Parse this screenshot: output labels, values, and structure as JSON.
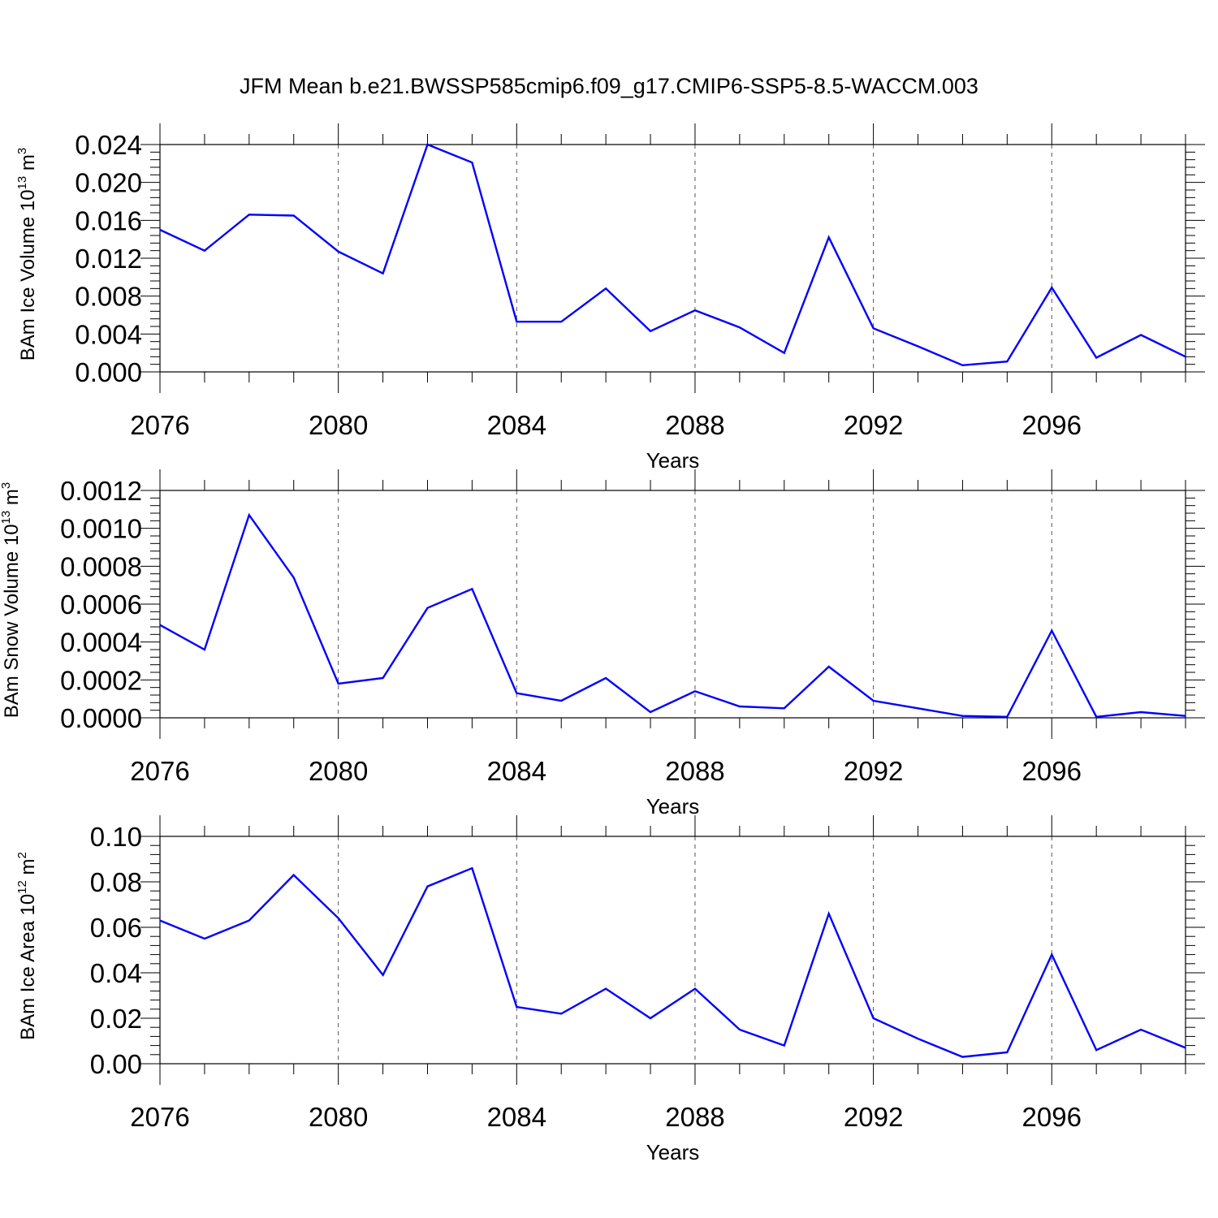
{
  "title": "JFM Mean b.e21.BWSSP585cmip6.f09_g17.CMIP6-SSP5-8.5-WACCM.003",
  "colors": {
    "series": "#0000ff",
    "axes": "#000000",
    "grid": "#555555"
  },
  "chart_data": [
    {
      "type": "line",
      "xlabel": "Years",
      "ylabel": {
        "prefix": "BAm Ice Volume 10",
        "exponent": "13",
        "unit": "m",
        "unit_exponent": "3"
      },
      "xlim": [
        2076,
        2099
      ],
      "ylim": [
        0,
        0.024
      ],
      "xticks": [
        2076,
        2080,
        2084,
        2088,
        2092,
        2096
      ],
      "yticks": [
        "0.000",
        "0.004",
        "0.008",
        "0.012",
        "0.016",
        "0.020",
        "0.024"
      ],
      "grid": "vertical dashed at major x ticks",
      "x": [
        2076,
        2077,
        2078,
        2079,
        2080,
        2081,
        2082,
        2083,
        2084,
        2085,
        2086,
        2087,
        2088,
        2089,
        2090,
        2091,
        2092,
        2093,
        2094,
        2095,
        2096,
        2097,
        2098,
        2099
      ],
      "values": [
        0.015,
        0.0128,
        0.0166,
        0.0165,
        0.0127,
        0.0104,
        0.024,
        0.0221,
        0.0053,
        0.0053,
        0.0088,
        0.0043,
        0.0065,
        0.0047,
        0.002,
        0.0142,
        0.0046,
        0.0027,
        0.0007,
        0.0011,
        0.0089,
        0.0015,
        0.0039,
        0.0016
      ]
    },
    {
      "type": "line",
      "xlabel": "Years",
      "ylabel": {
        "prefix": "BAm Snow Volume 10",
        "exponent": "13",
        "unit": "m",
        "unit_exponent": "3"
      },
      "xlim": [
        2076,
        2099
      ],
      "ylim": [
        0,
        0.0012
      ],
      "xticks": [
        2076,
        2080,
        2084,
        2088,
        2092,
        2096
      ],
      "yticks": [
        "0.0000",
        "0.0002",
        "0.0004",
        "0.0006",
        "0.0008",
        "0.0010",
        "0.0012"
      ],
      "grid": "vertical dashed at major x ticks",
      "x": [
        2076,
        2077,
        2078,
        2079,
        2080,
        2081,
        2082,
        2083,
        2084,
        2085,
        2086,
        2087,
        2088,
        2089,
        2090,
        2091,
        2092,
        2093,
        2094,
        2095,
        2096,
        2097,
        2098,
        2099
      ],
      "values": [
        0.00049,
        0.00036,
        0.00107,
        0.00074,
        0.00018,
        0.00021,
        0.00058,
        0.00068,
        0.00013,
        9e-05,
        0.00021,
        3e-05,
        0.00014,
        6e-05,
        5e-05,
        0.00027,
        9e-05,
        5e-05,
        1e-05,
        5e-06,
        0.00046,
        5e-06,
        3e-05,
        1e-05
      ]
    },
    {
      "type": "line",
      "xlabel": "Years",
      "ylabel": {
        "prefix": "BAm Ice Area 10",
        "exponent": "12",
        "unit": "m",
        "unit_exponent": "2"
      },
      "xlim": [
        2076,
        2099
      ],
      "ylim": [
        0,
        0.1
      ],
      "xticks": [
        2076,
        2080,
        2084,
        2088,
        2092,
        2096
      ],
      "yticks": [
        "0.00",
        "0.02",
        "0.04",
        "0.06",
        "0.08",
        "0.10"
      ],
      "grid": "vertical dashed at major x ticks",
      "x": [
        2076,
        2077,
        2078,
        2079,
        2080,
        2081,
        2082,
        2083,
        2084,
        2085,
        2086,
        2087,
        2088,
        2089,
        2090,
        2091,
        2092,
        2093,
        2094,
        2095,
        2096,
        2097,
        2098,
        2099
      ],
      "values": [
        0.063,
        0.055,
        0.063,
        0.083,
        0.064,
        0.039,
        0.078,
        0.086,
        0.025,
        0.022,
        0.033,
        0.02,
        0.033,
        0.015,
        0.008,
        0.066,
        0.02,
        0.011,
        0.003,
        0.005,
        0.048,
        0.006,
        0.015,
        0.007
      ]
    }
  ]
}
